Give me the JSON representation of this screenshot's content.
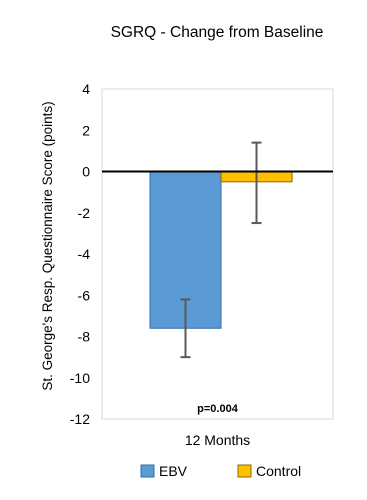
{
  "chart_data": {
    "type": "bar",
    "title": "SGRQ - Change from Baseline",
    "xlabel": "12 Months",
    "ylabel": "St. George's Resp. Questionnaire Score (points)",
    "categories": [
      "12 Months"
    ],
    "ylim": [
      -12,
      4
    ],
    "yticks": [
      4,
      2,
      0,
      -2,
      -4,
      -6,
      -8,
      -10,
      -12
    ],
    "grid": false,
    "legend_position": "bottom",
    "annotation": "p=0.004",
    "series": [
      {
        "name": "EBV",
        "values": [
          -7.6
        ],
        "error_low": [
          -9.0
        ],
        "error_high": [
          -6.2
        ],
        "color": "#5b9bd5",
        "edge_color": "#2e6da4"
      },
      {
        "name": "Control",
        "values": [
          -0.5
        ],
        "error_low": [
          -2.5
        ],
        "error_high": [
          1.4
        ],
        "color": "#ffc000",
        "edge_color": "#8a6a00"
      }
    ]
  }
}
